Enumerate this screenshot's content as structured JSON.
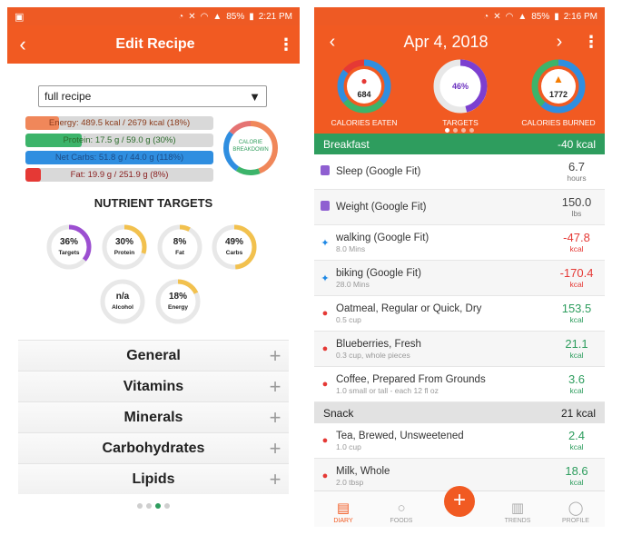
{
  "left": {
    "status": {
      "time": "2:21 PM",
      "battery": "85%"
    },
    "header": {
      "title": "Edit Recipe",
      "back_icon": "chevron-left-icon",
      "more_icon": "more-vert-icon"
    },
    "recipe_select": {
      "value": "full recipe"
    },
    "bars": [
      {
        "key": "energy",
        "text": "Energy: 489.5 kcal  /  2679 kcal (18%)",
        "fill": 0.18,
        "color": "#f0875a"
      },
      {
        "key": "protein",
        "text": "Protein: 17.5 g  /  59.0 g (30%)",
        "fill": 0.3,
        "color": "#3cb46a"
      },
      {
        "key": "carbs",
        "text": "Net Carbs: 51.8 g  /  44.0 g (118%)",
        "fill": 1.0,
        "color": "#2f8ee0"
      },
      {
        "key": "fat",
        "text": "Fat: 19.9 g  /  251.9 g (8%)",
        "fill": 0.08,
        "color": "#e53935"
      }
    ],
    "calorie_breakdown": {
      "line1": "CALORIE",
      "line2": "BREAKDOWN"
    },
    "nutrient_targets_title": "NUTRIENT TARGETS",
    "targets": [
      {
        "value": "36%",
        "name": "Targets",
        "pct": 0.36,
        "color": "#9c4fd1"
      },
      {
        "value": "30%",
        "name": "Protein",
        "pct": 0.3,
        "color": "#f2c14e"
      },
      {
        "value": "8%",
        "name": "Fat",
        "pct": 0.08,
        "color": "#f2c14e"
      },
      {
        "value": "49%",
        "name": "Carbs",
        "pct": 0.49,
        "color": "#f2c14e"
      },
      {
        "value": "n/a",
        "name": "Alcohol",
        "pct": 0,
        "color": "#f2c14e"
      },
      {
        "value": "18%",
        "name": "Energy",
        "pct": 0.18,
        "color": "#f2c14e"
      }
    ],
    "sections": [
      "General",
      "Vitamins",
      "Minerals",
      "Carbohydrates",
      "Lipids"
    ]
  },
  "right": {
    "status": {
      "time": "2:16 PM",
      "battery": "85%"
    },
    "header": {
      "date": "Apr 4, 2018",
      "prev_icon": "chevron-left-icon",
      "next_icon": "chevron-right-icon",
      "more_icon": "more-vert-icon"
    },
    "summary": {
      "eaten": {
        "value": "684",
        "label": "CALORIES EATEN"
      },
      "targets": {
        "value": "46%",
        "label": "TARGETS",
        "pct": 0.46
      },
      "burned": {
        "value": "1772",
        "label": "CALORIES BURNED"
      }
    },
    "breakfast": {
      "name": "Breakfast",
      "kcal": "-40 kcal"
    },
    "entries": [
      {
        "name": "Sleep (Google Fit)",
        "sub": "",
        "value": "6.7",
        "unit": "hours",
        "tone": "neutral",
        "icon": "sleep-icon"
      },
      {
        "name": "Weight (Google Fit)",
        "sub": "",
        "value": "150.0",
        "unit": "lbs",
        "tone": "neutral",
        "icon": "weight-icon"
      },
      {
        "name": "walking (Google Fit)",
        "sub": "8.0 Mins",
        "value": "-47.8",
        "unit": "kcal",
        "tone": "red",
        "icon": "run-icon"
      },
      {
        "name": "biking (Google Fit)",
        "sub": "28.0 Mins",
        "value": "-170.4",
        "unit": "kcal",
        "tone": "red",
        "icon": "run-icon"
      },
      {
        "name": "Oatmeal, Regular or Quick, Dry",
        "sub": "0.5 cup",
        "value": "153.5",
        "unit": "kcal",
        "tone": "green",
        "icon": "apple-icon"
      },
      {
        "name": "Blueberries, Fresh",
        "sub": "0.3 cup, whole pieces",
        "value": "21.1",
        "unit": "kcal",
        "tone": "green",
        "icon": "apple-icon"
      },
      {
        "name": "Coffee, Prepared From Grounds",
        "sub": "1.0 small or tall - each 12 fl oz",
        "value": "3.6",
        "unit": "kcal",
        "tone": "green",
        "icon": "apple-icon"
      }
    ],
    "snack": {
      "name": "Snack",
      "kcal": "21 kcal"
    },
    "snack_entries": [
      {
        "name": "Tea, Brewed, Unsweetened",
        "sub": "1.0 cup",
        "value": "2.4",
        "unit": "kcal",
        "tone": "green",
        "icon": "apple-icon"
      },
      {
        "name": "Milk, Whole",
        "sub": "2.0 tbsp",
        "value": "18.6",
        "unit": "kcal",
        "tone": "green",
        "icon": "apple-icon"
      }
    ],
    "nav": [
      "DIARY",
      "FOODS",
      "TRENDS",
      "PROFILE"
    ],
    "fab": "+"
  }
}
